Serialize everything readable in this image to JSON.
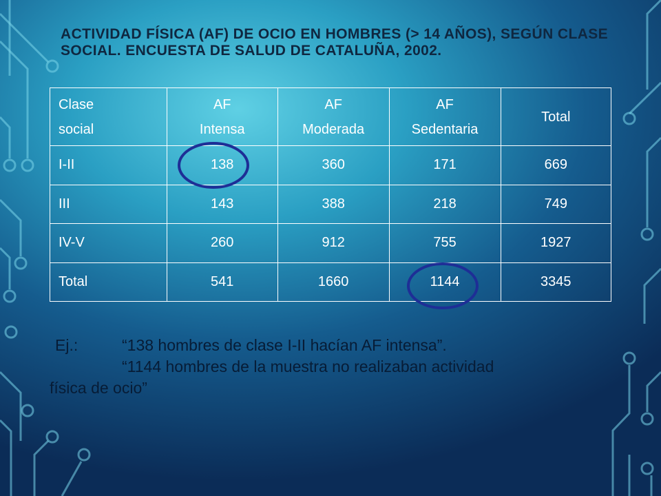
{
  "slide": {
    "title": "ACTIVIDAD FÍSICA (AF) DE OCIO EN HOMBRES (> 14 AÑOS), SEGÚN CLASE SOCIAL. ENCUESTA DE SALUD DE CATALUÑA, 2002."
  },
  "table": {
    "headers": [
      [
        "Clase",
        "social"
      ],
      [
        "AF",
        "Intensa"
      ],
      [
        "AF",
        "Moderada"
      ],
      [
        "AF",
        "Sedentaria"
      ],
      [
        "Total",
        ""
      ]
    ],
    "rows": [
      [
        "I-II",
        "138",
        "360",
        "171",
        "669"
      ],
      [
        "III",
        "143",
        "388",
        "218",
        "749"
      ],
      [
        "IV-V",
        "260",
        "912",
        "755",
        "1927"
      ],
      [
        "Total",
        "541",
        "1660",
        "1144",
        "3345"
      ]
    ],
    "highlighted_cells": [
      "138",
      "1144"
    ],
    "highlight_color": "#1e2e96"
  },
  "example": {
    "prefix": "Ej.:",
    "line1": "“138 hombres de clase I-II hacían AF intensa”.",
    "line2": "“1144 hombres de la muestra no realizaban actividad",
    "line3": "física de ocio”"
  }
}
